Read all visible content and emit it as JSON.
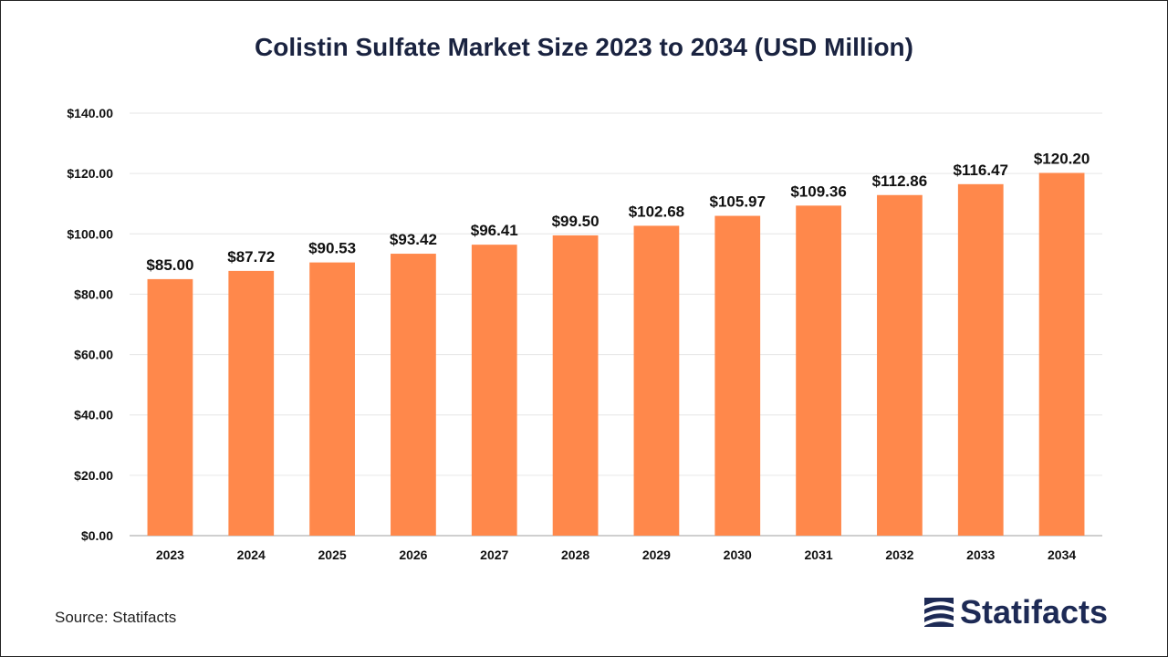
{
  "chart_data": {
    "type": "bar",
    "title": "Colistin Sulfate Market Size 2023 to 2034 (USD Million)",
    "categories": [
      "2023",
      "2024",
      "2025",
      "2026",
      "2027",
      "2028",
      "2029",
      "2030",
      "2031",
      "2032",
      "2033",
      "2034"
    ],
    "values": [
      85.0,
      87.72,
      90.53,
      93.42,
      96.41,
      99.5,
      102.68,
      105.97,
      109.36,
      112.86,
      116.47,
      120.2
    ],
    "value_labels": [
      "$85.00",
      "$87.72",
      "$90.53",
      "$93.42",
      "$96.41",
      "$99.50",
      "$102.68",
      "$105.97",
      "$109.36",
      "$112.86",
      "$116.47",
      "$120.20"
    ],
    "yticks": [
      0,
      20,
      40,
      60,
      80,
      100,
      120,
      140
    ],
    "ytick_labels": [
      "$0.00",
      "$20.00",
      "$40.00",
      "$60.00",
      "$80.00",
      "$100.00",
      "$120.00",
      "$140.00"
    ],
    "ylim": [
      0,
      140
    ],
    "xlabel": "",
    "ylabel": "",
    "grid": true,
    "legend": "none",
    "bar_color": "#FF884B"
  },
  "footer": {
    "source": "Source: Statifacts",
    "brand": "Statifacts"
  },
  "colors": {
    "title": "#1a2340",
    "grid": "#e6e6e6",
    "axis": "#bfbfbf",
    "brand": "#1d2a55"
  }
}
